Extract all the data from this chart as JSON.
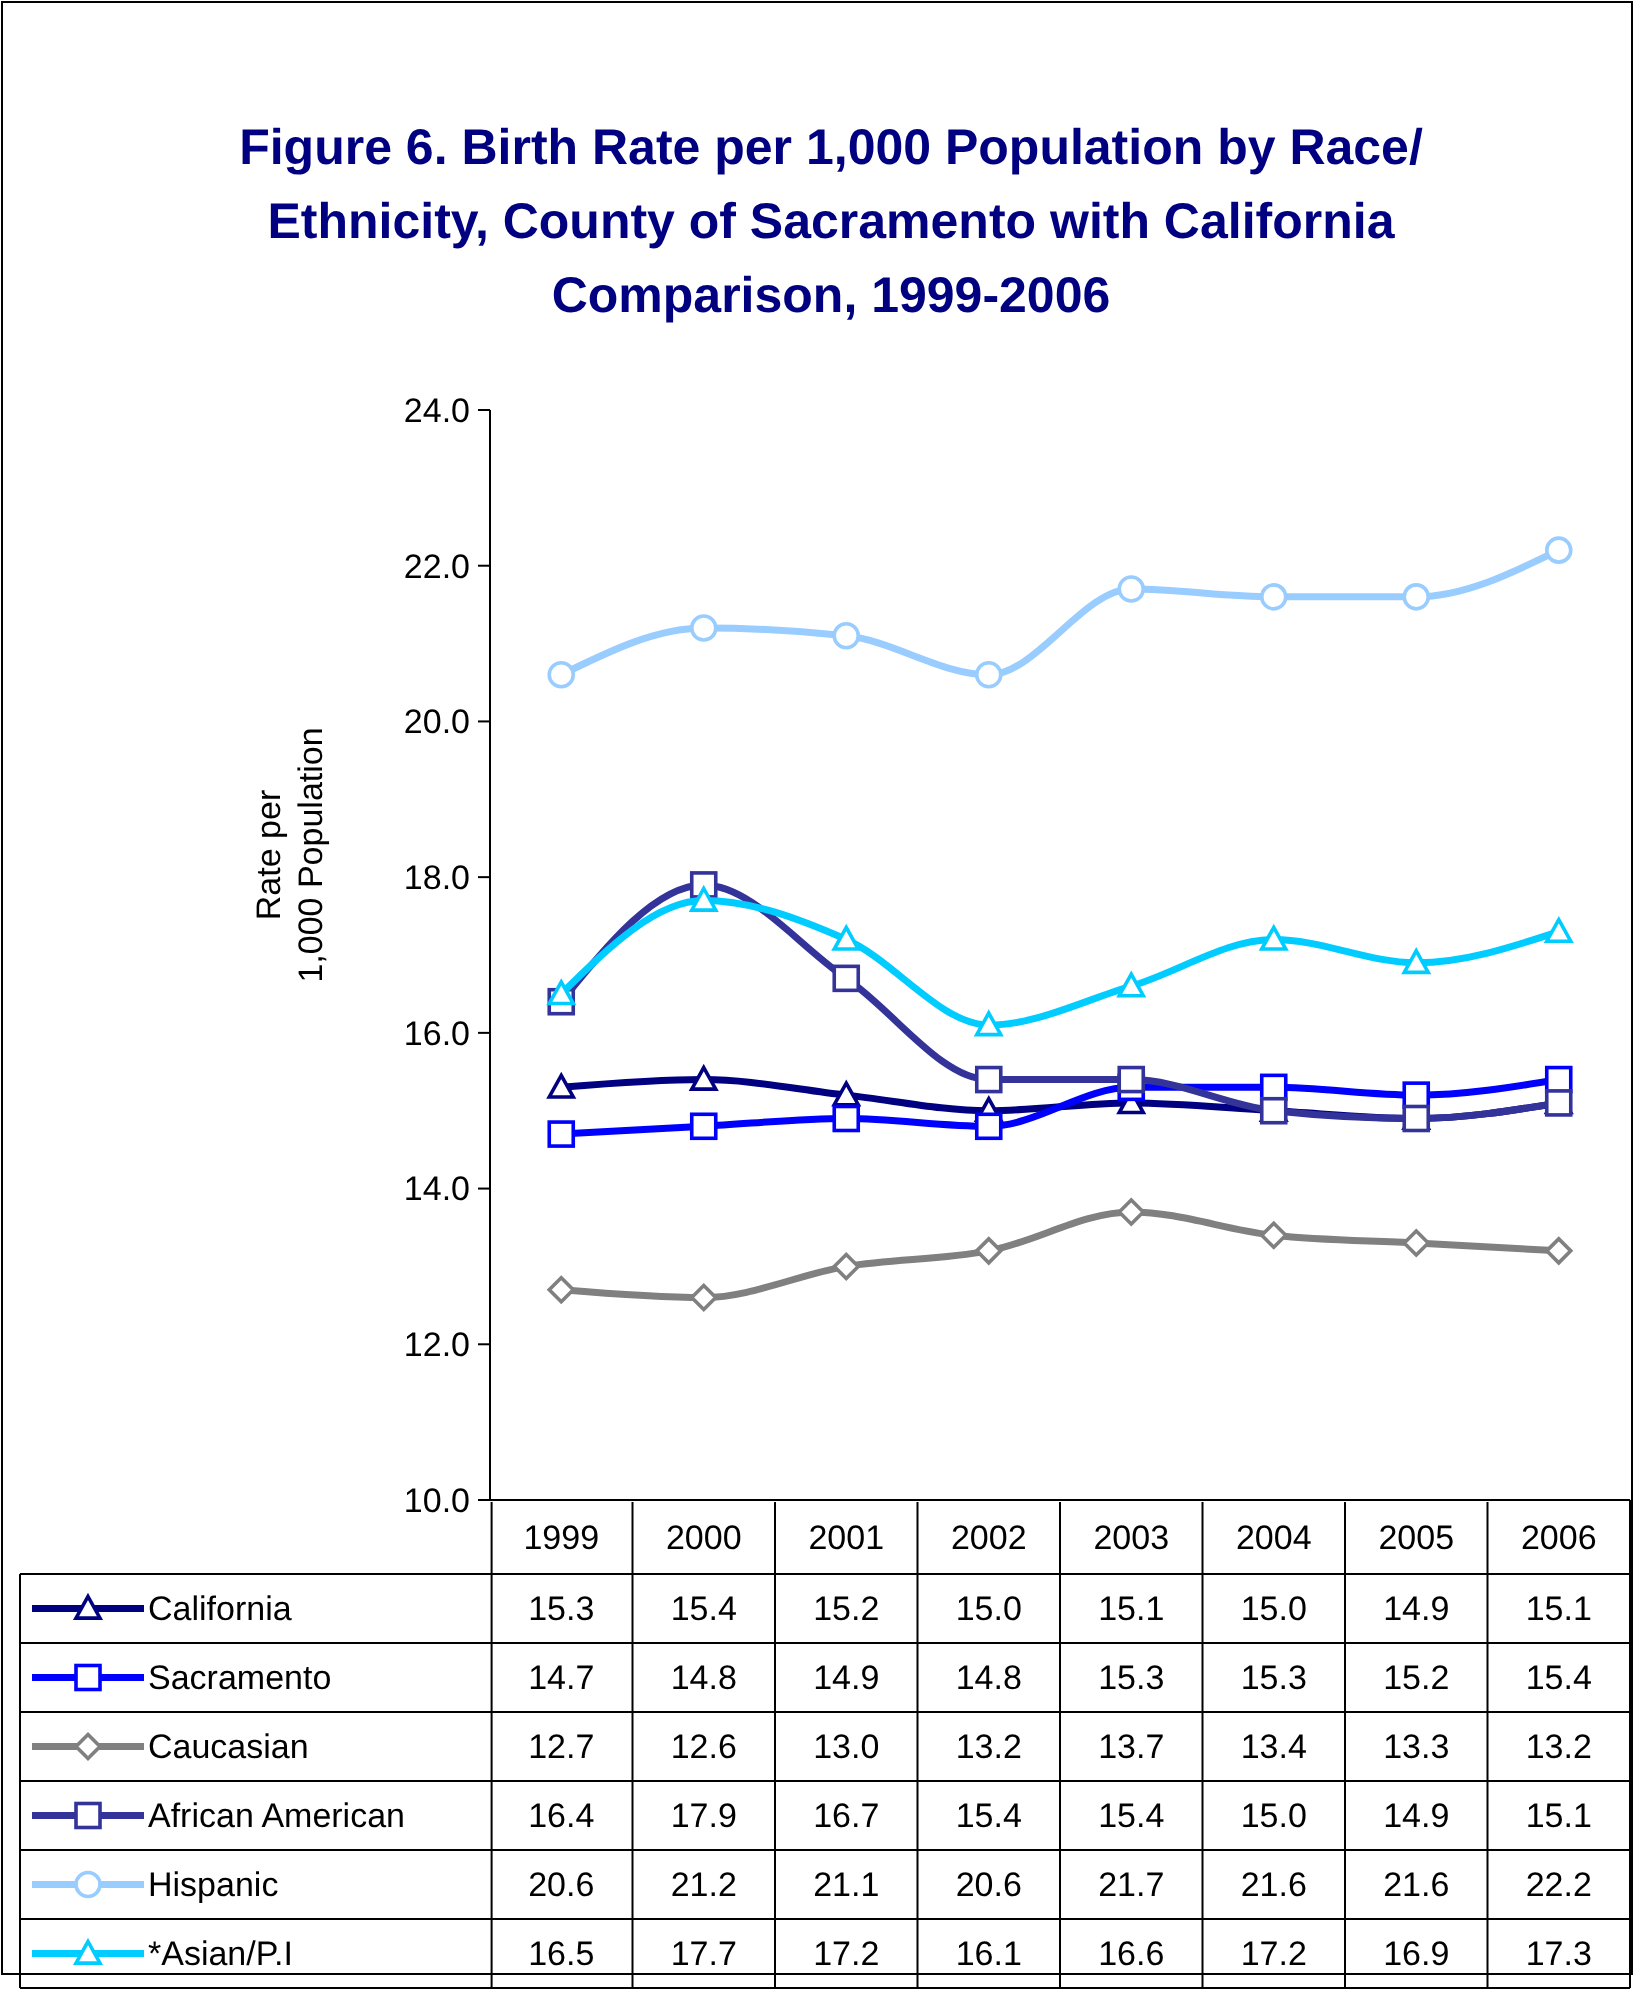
{
  "chart_data": {
    "type": "line",
    "title": "Figure 6. Birth Rate per 1,000 Population by Race/\nEthnicity, County of Sacramento with California\nComparison, 1999-2006",
    "ylabel": "Rate per\n1,000 Population",
    "categories": [
      "1999",
      "2000",
      "2001",
      "2002",
      "2003",
      "2004",
      "2005",
      "2006"
    ],
    "series": [
      {
        "name": "California",
        "color": "#000080",
        "marker": "triangle",
        "values": [
          15.3,
          15.4,
          15.2,
          15.0,
          15.1,
          15.0,
          14.9,
          15.1
        ],
        "value_labels": [
          "15.3",
          "15.4",
          "15.2",
          "15.0",
          "15.1",
          "15.0",
          "14.9",
          "15.1"
        ]
      },
      {
        "name": "Sacramento",
        "color": "#0000ff",
        "marker": "square",
        "values": [
          14.7,
          14.8,
          14.9,
          14.8,
          15.3,
          15.3,
          15.2,
          15.4
        ],
        "value_labels": [
          "14.7",
          "14.8",
          "14.9",
          "14.8",
          "15.3",
          "15.3",
          "15.2",
          "15.4"
        ]
      },
      {
        "name": "Caucasian",
        "color": "#808080",
        "marker": "diamond",
        "values": [
          12.7,
          12.6,
          13.0,
          13.2,
          13.7,
          13.4,
          13.3,
          13.2
        ],
        "value_labels": [
          "12.7",
          "12.6",
          "13.0",
          "13.2",
          "13.7",
          "13.4",
          "13.3",
          "13.2"
        ]
      },
      {
        "name": "African American",
        "color": "#333399",
        "marker": "square",
        "values": [
          16.4,
          17.9,
          16.7,
          15.4,
          15.4,
          15.0,
          14.9,
          15.1
        ],
        "value_labels": [
          "16.4",
          "17.9",
          "16.7",
          "15.4",
          "15.4",
          "15.0",
          "14.9",
          "15.1"
        ]
      },
      {
        "name": "Hispanic",
        "color": "#99ccff",
        "marker": "circle",
        "values": [
          20.6,
          21.2,
          21.1,
          20.6,
          21.7,
          21.6,
          21.6,
          22.2
        ],
        "value_labels": [
          "20.6",
          "21.2",
          "21.1",
          "20.6",
          "21.7",
          "21.6",
          "21.6",
          "22.2"
        ]
      },
      {
        "name": "*Asian/P.I",
        "color": "#00ccff",
        "marker": "triangle",
        "values": [
          16.5,
          17.7,
          17.2,
          16.1,
          16.6,
          17.2,
          16.9,
          17.3
        ],
        "value_labels": [
          "16.5",
          "17.7",
          "17.2",
          "16.1",
          "16.6",
          "17.2",
          "16.9",
          "17.3"
        ]
      }
    ],
    "ylim": [
      10,
      24
    ],
    "yticks": [
      {
        "value": 10,
        "label": "10.0"
      },
      {
        "value": 12,
        "label": "12.0"
      },
      {
        "value": 14,
        "label": "14.0"
      },
      {
        "value": 16,
        "label": "16.0"
      },
      {
        "value": 18,
        "label": "18.0"
      },
      {
        "value": 20,
        "label": "20.0"
      },
      {
        "value": 22,
        "label": "22.0"
      },
      {
        "value": 24,
        "label": "24.0"
      }
    ],
    "grid": false,
    "legend": "bottom",
    "line_style": "solid"
  }
}
